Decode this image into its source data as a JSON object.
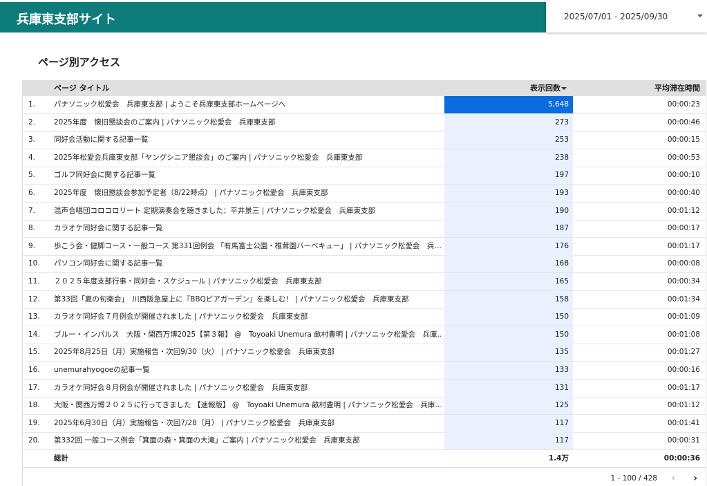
{
  "header": {
    "title": "兵庫東支部サイト",
    "date_range": "2025/07/01 - 2025/09/30"
  },
  "section": {
    "title": "ページ別アクセス"
  },
  "table": {
    "columns": [
      "ページ タイトル",
      "表示回数",
      "平均滞在時間"
    ],
    "rows": [
      [
        "1.",
        "パナソニック松愛会　兵庫東支部 | ようこそ兵庫東支部ホームページへ",
        "5,648",
        "00:00:23"
      ],
      [
        "2.",
        "2025年度　懐旧懇談会のご案内 | パナソニック松愛会　兵庫東支部",
        "273",
        "00:00:46"
      ],
      [
        "3.",
        "同好会活動に関する記事一覧",
        "253",
        "00:00:15"
      ],
      [
        "4.",
        "2025年松愛会兵庫東支部「ヤングシニア懇談会」のご案内 | パナソニック松愛会　兵庫東支部",
        "238",
        "00:00:53"
      ],
      [
        "5.",
        "ゴルフ同好会に関する記事一覧",
        "197",
        "00:00:10"
      ],
      [
        "6.",
        "2025年度　懐旧懇談会参加予定者（8/22時点） | パナソニック松愛会　兵庫東支部",
        "193",
        "00:00:40"
      ],
      [
        "7.",
        "混声合唱団コロコロリート 定期演奏会を聴きました：平井景三 | パナソニック松愛会　兵庫東支部",
        "190",
        "00:01:12"
      ],
      [
        "8.",
        "カラオケ同好会に関する記事一覧",
        "187",
        "00:00:17"
      ],
      [
        "9.",
        "歩こう会・健脚コース・一般コース 第331回例会 「有馬富士公園・椎茸園バーベキュー」 | パナソニック松愛会　兵…",
        "176",
        "00:01:17"
      ],
      [
        "10.",
        "パソコン同好会に関する記事一覧",
        "168",
        "00:00:08"
      ],
      [
        "11.",
        "２０２５年度支部行事・同好会・スケジュール | パナソニック松愛会　兵庫東支部",
        "165",
        "00:00:34"
      ],
      [
        "12.",
        "第33回「夏の旬楽会」　川西阪急屋上に『BBQビアガーデン』を楽しむ！ | パナソニック松愛会　兵庫東支部",
        "158",
        "00:01:34"
      ],
      [
        "13.",
        "カラオケ同好会７月例会が開催されました | パナソニック松愛会　兵庫東支部",
        "150",
        "00:01:09"
      ],
      [
        "14.",
        "ブルー・インパルス　大阪・関西万博2025【第３報】 @　Toyoaki Unemura 畝村豊明 | パナソニック松愛会　兵庫…",
        "150",
        "00:01:08"
      ],
      [
        "15.",
        "2025年8月25日（月）実施報告・次回9/30（火） | パナソニック松愛会　兵庫東支部",
        "135",
        "00:01:27"
      ],
      [
        "16.",
        "unemurahyogoeの記事一覧",
        "133",
        "00:00:16"
      ],
      [
        "17.",
        "カラオケ同好会８月例会が開催されました | パナソニック松愛会　兵庫東支部",
        "131",
        "00:01:17"
      ],
      [
        "18.",
        "大阪・関西万博２０２５に行ってきました 【速報版】 @　Toyoaki Unemura 畝村豊明 | パナソニック松愛会　兵庫…",
        "125",
        "00:01:12"
      ],
      [
        "19.",
        "2025年6月30日（月）実施報告・次回7/28（月） | パナソニック松愛会　兵庫東支部",
        "117",
        "00:01:41"
      ],
      [
        "20.",
        "第332回 一般コース例会「箕面の森・箕面の大滝」ご案内 | パナソニック松愛会　兵庫東支部",
        "117",
        "00:00:31"
      ]
    ],
    "total": {
      "label": "総計",
      "views": "1.4万",
      "time": "00:00:36"
    },
    "pagination": "1 - 100 / 428"
  }
}
